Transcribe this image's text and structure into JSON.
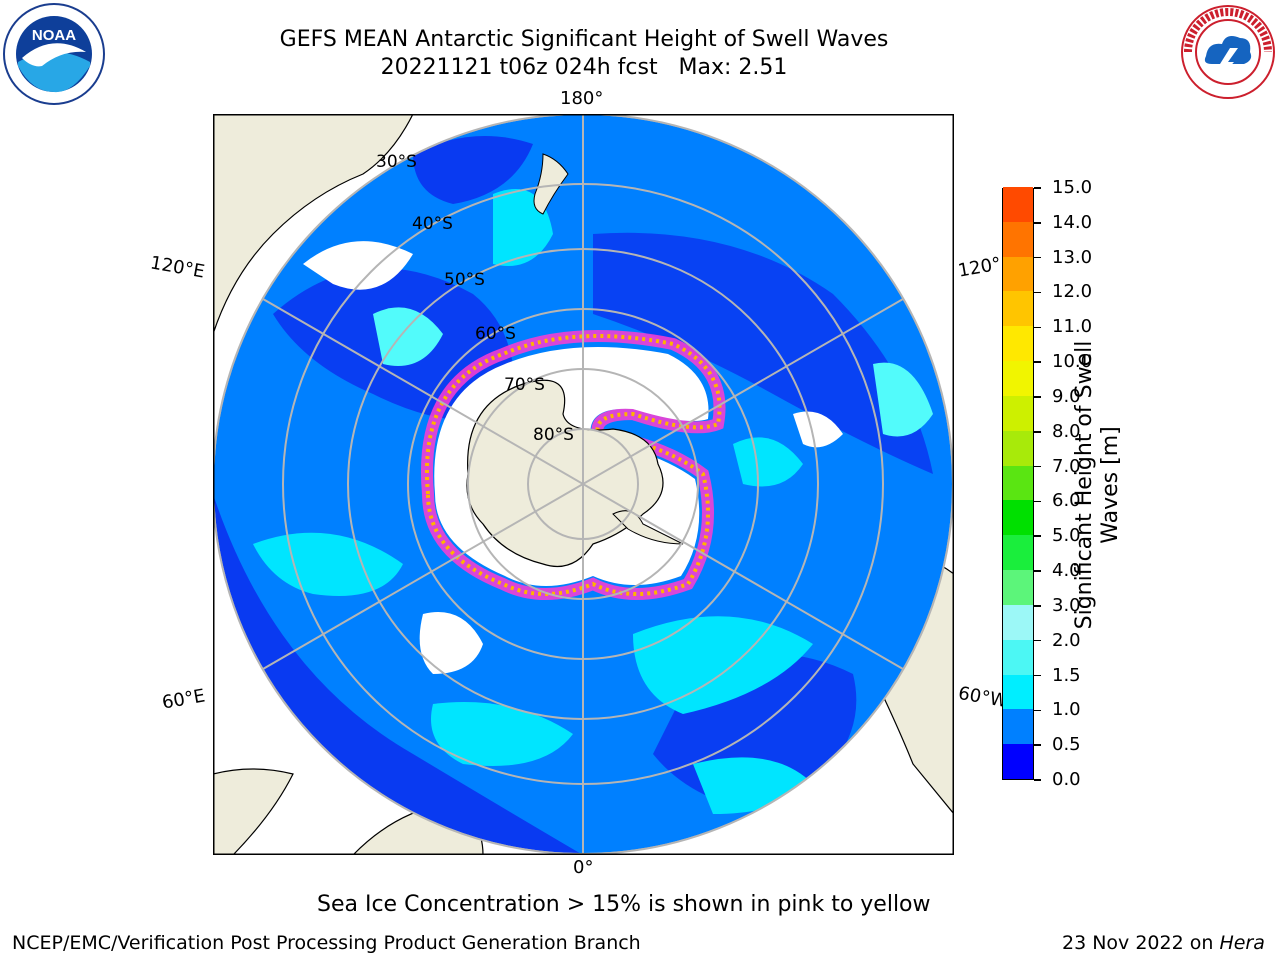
{
  "title": {
    "line1": "GEFS MEAN Antarctic Significant Height of Swell Waves",
    "line2": "20221121 t06z 024h fcst   Max: 2.51"
  },
  "logos": {
    "left": "noa-logo",
    "left_text": "NOAA",
    "right": "nws-logo",
    "right_text": "NATIONAL WEATHER SERVICE"
  },
  "map": {
    "projection": "south-polar-stereographic",
    "longitude_labels": {
      "top": "180°",
      "bottom": "0°",
      "upper_left": "120°E",
      "lower_left": "60°E",
      "upper_right": "120°",
      "lower_right": "60°W"
    },
    "latitude_labels": [
      "30°S",
      "40°S",
      "50°S",
      "60°S",
      "70°S",
      "80°S"
    ],
    "colors": {
      "land": "#eeecdb",
      "ice_free_low": "#0a32f0",
      "swell_0_5": "#0080ff",
      "swell_1_0": "#00e5ff",
      "swell_1_5": "#52fbfb",
      "sea_ice_pink": "#ff3cd2",
      "sea_ice_yellow": "#ffb400",
      "grid": "#b5b5b5"
    }
  },
  "colorbar": {
    "title": "Significant Height of Swell Waves [m]",
    "ticks": [
      "15.0",
      "14.0",
      "13.0",
      "12.0",
      "11.0",
      "10.0",
      "9.0",
      "8.0",
      "7.0",
      "6.0",
      "5.0",
      "4.0",
      "3.0",
      "2.0",
      "1.5",
      "1.0",
      "0.5",
      "0.0"
    ],
    "segment_colors": [
      "#0000ff",
      "#0080ff",
      "#00eeff",
      "#4cf7f4",
      "#9cf8f7",
      "#5cf57a",
      "#1aee3c",
      "#00e000",
      "#5ae512",
      "#a8ea0a",
      "#cdf000",
      "#f1f500",
      "#ffe800",
      "#ffc500",
      "#ffa100",
      "#ff7400",
      "#ff4a00",
      "#ff0000"
    ]
  },
  "caption": "Sea Ice Concentration > 15% is shown in pink to yellow",
  "footer": {
    "left": "NCEP/EMC/Verification Post Processing Product Generation Branch",
    "right_date": "23 Nov 2022 on ",
    "right_host": "Hera"
  }
}
